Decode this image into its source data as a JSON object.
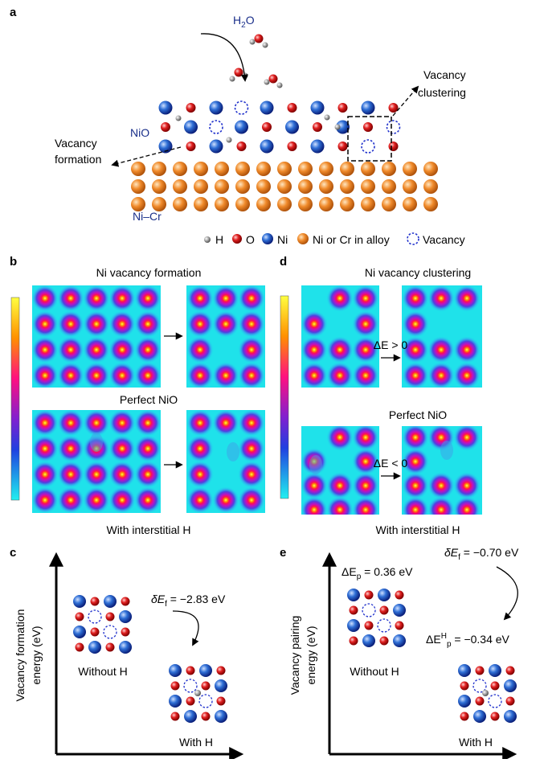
{
  "panel_a": {
    "label": "a",
    "water": {
      "h": "H",
      "sub": "2",
      "o": "O"
    },
    "vacancy_clustering": [
      "Vacancy",
      "clustering"
    ],
    "nio": "NiO",
    "vacancy_formation": [
      "Vacancy",
      "formation"
    ],
    "alloy": "Ni–Cr",
    "legend": [
      "H",
      "O",
      "Ni",
      "Ni or Cr in alloy",
      "Vacancy"
    ]
  },
  "panel_b": {
    "label": "b",
    "title": "Ni vacancy formation",
    "middle": "Perfect NiO",
    "bottom": "With interstitial H"
  },
  "panel_d": {
    "label": "d",
    "title": "Ni vacancy clustering",
    "arrow_top": "ΔE > 0",
    "middle": "Perfect NiO",
    "arrow_bottom": "ΔE < 0",
    "bottom": "With interstitial H"
  },
  "panel_c": {
    "label": "c",
    "ylabel": [
      "Vacancy formation",
      "energy (eV)"
    ],
    "delta": {
      "sym": "δE",
      "sub": "f",
      "rest": " = −2.83 eV"
    },
    "left": "Without H",
    "right": "With H"
  },
  "panel_e": {
    "label": "e",
    "ylabel": [
      "Vacancy pairing",
      "energy (eV)"
    ],
    "delta": {
      "sym": "δE",
      "sub": "f",
      "rest": " = −0.70 eV"
    },
    "pair": {
      "sym": "ΔE",
      "sub": "p",
      "rest": " = 0.36 eV"
    },
    "pair_h": {
      "sym": "ΔE",
      "sup": "H",
      "sub": "p",
      "rest": " = −0.34 eV"
    },
    "left": "Without H",
    "right": "With H"
  }
}
